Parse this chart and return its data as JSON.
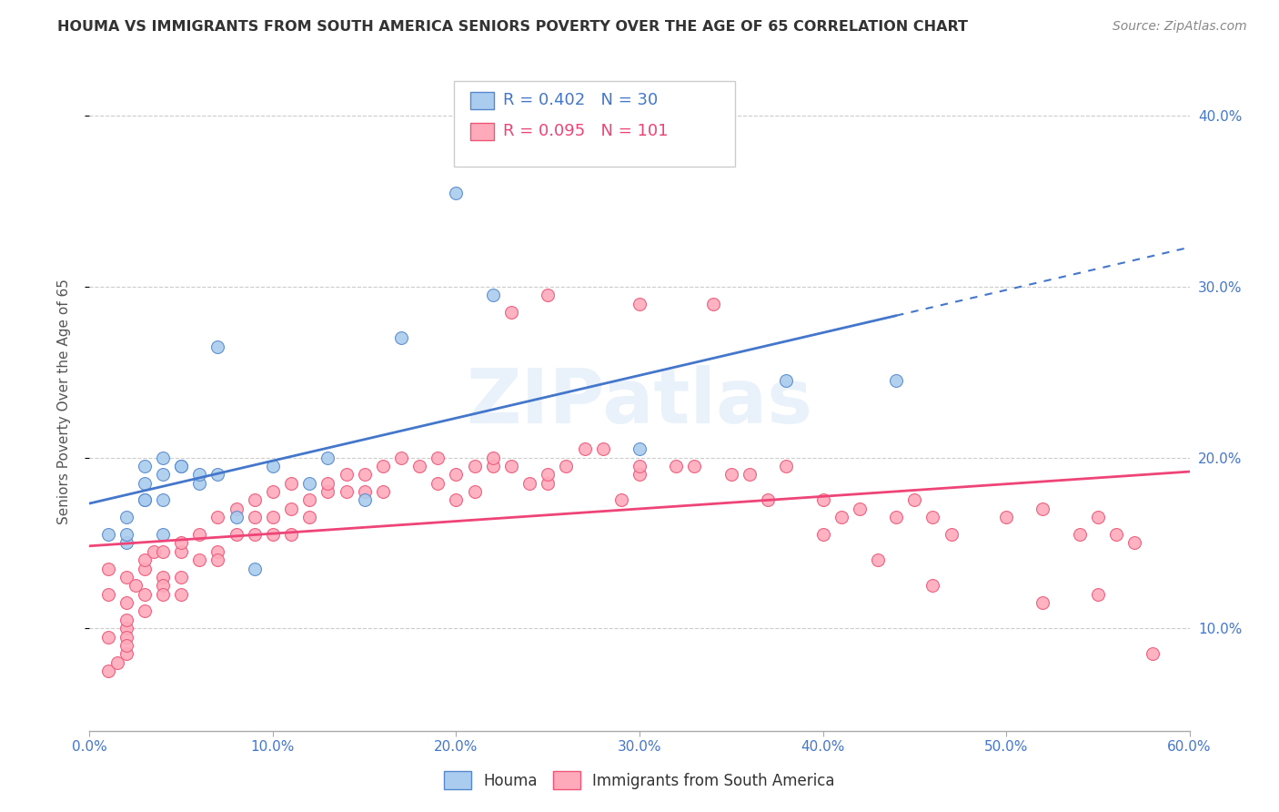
{
  "title": "HOUMA VS IMMIGRANTS FROM SOUTH AMERICA SENIORS POVERTY OVER THE AGE OF 65 CORRELATION CHART",
  "source": "Source: ZipAtlas.com",
  "ylabel": "Seniors Poverty Over the Age of 65",
  "xlim": [
    0.0,
    0.6
  ],
  "ylim": [
    0.04,
    0.425
  ],
  "xticks": [
    0.0,
    0.1,
    0.2,
    0.3,
    0.4,
    0.5,
    0.6
  ],
  "yticks": [
    0.1,
    0.2,
    0.3,
    0.4
  ],
  "xticklabels": [
    "0.0%",
    "10.0%",
    "20.0%",
    "30.0%",
    "40.0%",
    "50.0%",
    "60.0%"
  ],
  "yticklabels_right": [
    "10.0%",
    "20.0%",
    "30.0%",
    "40.0%"
  ],
  "background_color": "#ffffff",
  "houma_color": "#aaccee",
  "houma_edge_color": "#5588cc",
  "sa_color": "#ffaabb",
  "sa_edge_color": "#ee5577",
  "trendline_blue": "#4477cc",
  "trendline_pink": "#ee4477",
  "houma_R": 0.402,
  "houma_N": 30,
  "sa_R": 0.095,
  "sa_N": 101,
  "legend_label_houma": "Houma",
  "legend_label_sa": "Immigrants from South America",
  "houma_x": [
    0.01,
    0.02,
    0.02,
    0.02,
    0.03,
    0.03,
    0.03,
    0.03,
    0.04,
    0.04,
    0.04,
    0.04,
    0.05,
    0.05,
    0.06,
    0.06,
    0.07,
    0.07,
    0.08,
    0.09,
    0.1,
    0.12,
    0.13,
    0.15,
    0.17,
    0.2,
    0.22,
    0.3,
    0.38,
    0.44
  ],
  "houma_y": [
    0.155,
    0.15,
    0.165,
    0.155,
    0.175,
    0.175,
    0.185,
    0.195,
    0.155,
    0.175,
    0.19,
    0.2,
    0.195,
    0.195,
    0.185,
    0.19,
    0.19,
    0.265,
    0.165,
    0.135,
    0.195,
    0.185,
    0.2,
    0.175,
    0.27,
    0.355,
    0.295,
    0.205,
    0.245,
    0.245
  ],
  "sa_x": [
    0.01,
    0.01,
    0.01,
    0.01,
    0.015,
    0.02,
    0.02,
    0.02,
    0.02,
    0.02,
    0.02,
    0.02,
    0.025,
    0.03,
    0.03,
    0.03,
    0.03,
    0.035,
    0.04,
    0.04,
    0.04,
    0.04,
    0.05,
    0.05,
    0.05,
    0.05,
    0.06,
    0.06,
    0.07,
    0.07,
    0.07,
    0.08,
    0.08,
    0.09,
    0.09,
    0.09,
    0.1,
    0.1,
    0.1,
    0.11,
    0.11,
    0.11,
    0.12,
    0.12,
    0.13,
    0.13,
    0.14,
    0.14,
    0.15,
    0.15,
    0.16,
    0.16,
    0.17,
    0.18,
    0.19,
    0.19,
    0.2,
    0.2,
    0.21,
    0.21,
    0.22,
    0.22,
    0.23,
    0.24,
    0.25,
    0.25,
    0.26,
    0.27,
    0.28,
    0.29,
    0.3,
    0.3,
    0.32,
    0.33,
    0.35,
    0.36,
    0.38,
    0.4,
    0.41,
    0.42,
    0.44,
    0.45,
    0.46,
    0.47,
    0.5,
    0.52,
    0.54,
    0.55,
    0.56,
    0.57,
    0.23,
    0.25,
    0.3,
    0.34,
    0.37,
    0.4,
    0.43,
    0.46,
    0.52,
    0.55,
    0.58
  ],
  "sa_y": [
    0.135,
    0.12,
    0.095,
    0.075,
    0.08,
    0.13,
    0.115,
    0.1,
    0.095,
    0.085,
    0.105,
    0.09,
    0.125,
    0.135,
    0.12,
    0.11,
    0.14,
    0.145,
    0.13,
    0.145,
    0.125,
    0.12,
    0.145,
    0.15,
    0.13,
    0.12,
    0.14,
    0.155,
    0.145,
    0.165,
    0.14,
    0.155,
    0.17,
    0.165,
    0.175,
    0.155,
    0.165,
    0.155,
    0.18,
    0.17,
    0.185,
    0.155,
    0.165,
    0.175,
    0.18,
    0.185,
    0.18,
    0.19,
    0.18,
    0.19,
    0.195,
    0.18,
    0.2,
    0.195,
    0.2,
    0.185,
    0.175,
    0.19,
    0.195,
    0.18,
    0.195,
    0.2,
    0.195,
    0.185,
    0.185,
    0.19,
    0.195,
    0.205,
    0.205,
    0.175,
    0.19,
    0.195,
    0.195,
    0.195,
    0.19,
    0.19,
    0.195,
    0.175,
    0.165,
    0.17,
    0.165,
    0.175,
    0.165,
    0.155,
    0.165,
    0.17,
    0.155,
    0.165,
    0.155,
    0.15,
    0.285,
    0.295,
    0.29,
    0.29,
    0.175,
    0.155,
    0.14,
    0.125,
    0.115,
    0.12,
    0.085
  ]
}
